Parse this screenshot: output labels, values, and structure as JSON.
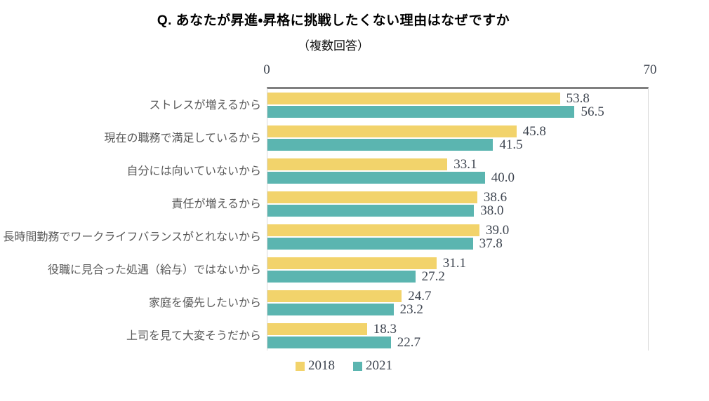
{
  "chart_data": {
    "type": "bar",
    "orientation": "horizontal",
    "title": "Q. あなたが昇進・昇格に挑戦したくない理由はなぜですか",
    "subtitle": "（複数回答）",
    "categories": [
      "ストレスが増えるから",
      "現在の職務で満足しているから",
      "自分には向いていないから",
      "責任が増えるから",
      "長時間勤務でワークライフバランスがとれないから",
      "役職に見合った処遇（給与）ではないから",
      "家庭を優先したいから",
      "上司を見て大変そうだから"
    ],
    "series": [
      {
        "name": "2018",
        "color": "#F2D36B",
        "values": [
          53.8,
          45.8,
          33.1,
          38.6,
          39.0,
          31.1,
          24.7,
          18.3
        ]
      },
      {
        "name": "2021",
        "color": "#5BB5B0",
        "values": [
          56.5,
          41.5,
          40.0,
          38.0,
          37.8,
          27.2,
          23.2,
          22.7
        ]
      }
    ],
    "xlim": [
      0,
      70
    ],
    "x_ticks": [
      "0",
      "70"
    ],
    "value_labels": true,
    "value_label_decimals": 1,
    "legend_position": "bottom",
    "grid": false,
    "colors": {
      "axis_line": "#7F7F7F",
      "plot_border": "#D9D9D9",
      "value_text": "#3F4651",
      "category_text": "#595959",
      "title_text": "#000000",
      "background": "#FFFFFF"
    }
  }
}
